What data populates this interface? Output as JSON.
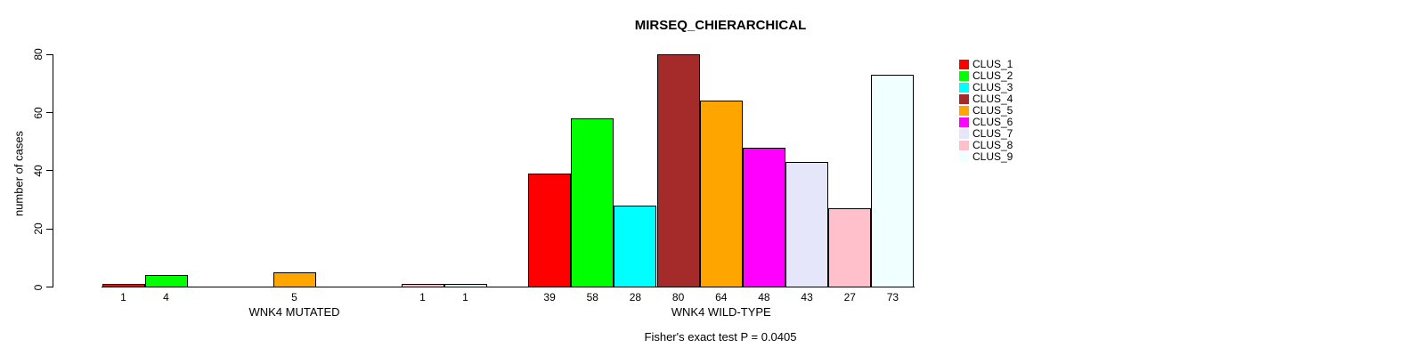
{
  "chart_data": {
    "type": "bar",
    "title": "MIRSEQ_CHIERARCHICAL",
    "ylabel": "number of cases",
    "xlabel": "",
    "categories": [
      "WNK4 MUTATED",
      "WNK4 WILD-TYPE"
    ],
    "series": [
      {
        "name": "CLUS_1",
        "color": "#FF0000",
        "values": [
          1,
          39
        ]
      },
      {
        "name": "CLUS_2",
        "color": "#00FF00",
        "values": [
          4,
          58
        ]
      },
      {
        "name": "CLUS_3",
        "color": "#00FFFF",
        "values": [
          0,
          28
        ]
      },
      {
        "name": "CLUS_4",
        "color": "#A52A2A",
        "values": [
          0,
          80
        ]
      },
      {
        "name": "CLUS_5",
        "color": "#FFA500",
        "values": [
          5,
          64
        ]
      },
      {
        "name": "CLUS_6",
        "color": "#FF00FF",
        "values": [
          0,
          48
        ]
      },
      {
        "name": "CLUS_7",
        "color": "#E6E6FA",
        "values": [
          0,
          43
        ]
      },
      {
        "name": "CLUS_8",
        "color": "#FFC0CB",
        "values": [
          1,
          27
        ]
      },
      {
        "name": "CLUS_9",
        "color": "#F0FFFF",
        "values": [
          1,
          73
        ]
      }
    ],
    "ylim": [
      0,
      80
    ],
    "yticks": [
      0,
      20,
      40,
      60,
      80
    ],
    "grid": false,
    "legend_position": "right",
    "bar_value_labels": "shown under each non-zero bar",
    "annotation": "Fisher's exact test P = 0.0405"
  }
}
